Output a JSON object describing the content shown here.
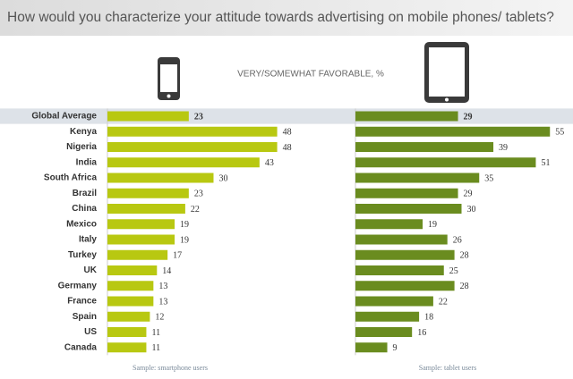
{
  "title": "How would you characterize your attitude towards advertising on mobile phones/ tablets?",
  "subtitle": "VERY/SOMEWHAT FAVORABLE, %",
  "chart_data": {
    "type": "bar",
    "orientation": "horizontal",
    "categories": [
      "Global Average",
      "Kenya",
      "Nigeria",
      "India",
      "South Africa",
      "Brazil",
      "China",
      "Mexico",
      "Italy",
      "Turkey",
      "UK",
      "Germany",
      "France",
      "Spain",
      "US",
      "Canada"
    ],
    "highlight": "Global Average",
    "series": [
      {
        "color": "#b8c811",
        "note": "Sample: smartphone users",
        "values": [
          23,
          48,
          48,
          43,
          30,
          23,
          22,
          19,
          19,
          17,
          14,
          13,
          13,
          12,
          11,
          11
        ]
      },
      {
        "color": "#6a8c1f",
        "note": "Sample: tablet users",
        "values": [
          29,
          55,
          39,
          51,
          35,
          29,
          30,
          19,
          26,
          28,
          25,
          28,
          22,
          18,
          16,
          9
        ]
      }
    ]
  }
}
